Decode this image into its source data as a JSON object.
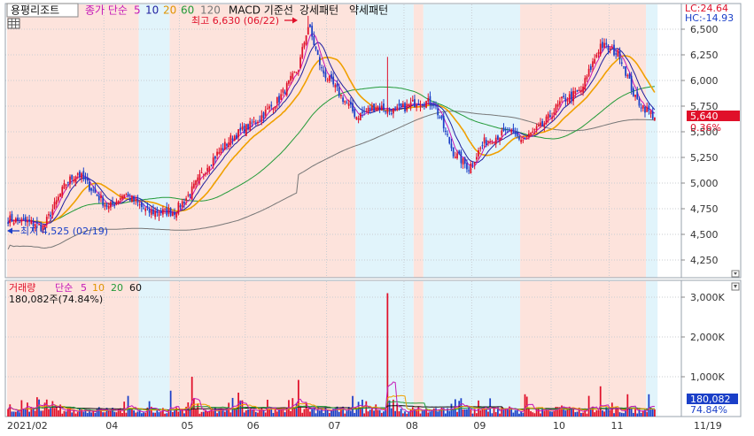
{
  "header": {
    "stock_name": "용평리조트",
    "ma_label_price": "종가 단순",
    "ma_periods": [
      "5",
      "10",
      "20",
      "60",
      "120"
    ],
    "indicators": [
      "MACD 기준선",
      "강세패턴",
      "약세패턴"
    ],
    "lc_label": "LC:24.64",
    "hc_label": "HC:-14.93"
  },
  "volume_header": {
    "label": "거래량",
    "ma_label": "단순",
    "ma_periods": [
      "5",
      "10",
      "20",
      "60"
    ],
    "current": "180,082주(74.84%)"
  },
  "annotations": {
    "high": "최고 6,630 (06/22)",
    "low": "최저 4,525 (02/19)"
  },
  "price_axis": {
    "ticks": [
      "6,500",
      "6,250",
      "6,000",
      "5,750",
      "5,500",
      "5,250",
      "5,000",
      "4,750",
      "4,500",
      "4,250"
    ],
    "current_price": "5,640",
    "current_change": "0.36%"
  },
  "volume_axis": {
    "ticks": [
      "3,000K",
      "2,000K",
      "1,000K"
    ],
    "current_volume": "180,082",
    "current_ratio": "74.84%"
  },
  "x_axis": {
    "ticks": [
      "2021/02",
      "04",
      "05",
      "06",
      "07",
      "08",
      "09",
      "10",
      "11",
      "11/19"
    ]
  },
  "colors": {
    "up": "#e0102a",
    "down": "#1a3fc8",
    "ma5": "#c418b8",
    "ma10": "#1f1fa0",
    "ma20": "#f0a000",
    "ma60": "#229a38",
    "ma120": "#777777",
    "band_bull": "#fde3dc",
    "band_bear": "#e1f4fb"
  },
  "chart_data": {
    "type": "candlestick",
    "price_range": [
      4100,
      6700
    ],
    "volume_range_k": [
      0,
      3300
    ],
    "anchors": [
      {
        "t": 0,
        "price": 4650,
        "label": "2021/02"
      },
      {
        "t": 14,
        "price": 4600
      },
      {
        "t": 18,
        "price": 4560
      },
      {
        "t": 30,
        "price": 5000
      },
      {
        "t": 36,
        "price": 5100
      },
      {
        "t": 46,
        "price": 4880
      },
      {
        "t": 52,
        "price": 4760
      },
      {
        "t": 60,
        "price": 4900
      },
      {
        "t": 72,
        "price": 4720
      },
      {
        "t": 86,
        "price": 4720
      },
      {
        "t": 94,
        "price": 4900
      },
      {
        "t": 104,
        "price": 5200
      },
      {
        "t": 116,
        "price": 5450
      },
      {
        "t": 128,
        "price": 5600
      },
      {
        "t": 140,
        "price": 5820
      },
      {
        "t": 150,
        "price": 6120
      },
      {
        "t": 155,
        "price": 6550
      },
      {
        "t": 162,
        "price": 6100
      },
      {
        "t": 170,
        "price": 5900
      },
      {
        "t": 180,
        "price": 5650
      },
      {
        "t": 190,
        "price": 5750
      },
      {
        "t": 200,
        "price": 5700
      },
      {
        "t": 212,
        "price": 5800
      },
      {
        "t": 220,
        "price": 5780
      },
      {
        "t": 230,
        "price": 5300
      },
      {
        "t": 238,
        "price": 5150
      },
      {
        "t": 246,
        "price": 5400
      },
      {
        "t": 258,
        "price": 5500
      },
      {
        "t": 266,
        "price": 5420
      },
      {
        "t": 276,
        "price": 5560
      },
      {
        "t": 286,
        "price": 5800
      },
      {
        "t": 296,
        "price": 5900
      },
      {
        "t": 306,
        "price": 6350
      },
      {
        "t": 316,
        "price": 6250
      },
      {
        "t": 324,
        "price": 5820
      },
      {
        "t": 334,
        "price": 5640
      }
    ],
    "date_ticks": [
      {
        "t": 0,
        "label": "2021/02"
      },
      {
        "t": 50,
        "label": "04"
      },
      {
        "t": 89,
        "label": "05"
      },
      {
        "t": 123,
        "label": "06"
      },
      {
        "t": 165,
        "label": "07"
      },
      {
        "t": 205,
        "label": "08"
      },
      {
        "t": 240,
        "label": "09"
      },
      {
        "t": 281,
        "label": "10"
      },
      {
        "t": 311,
        "label": "11"
      },
      {
        "t": 349,
        "label": "11/19"
      }
    ],
    "n_days": 335,
    "high": {
      "t": 155,
      "price": 6630,
      "date": "06/22"
    },
    "low": {
      "t": 14,
      "price": 4525,
      "date": "02/19"
    },
    "bands": [
      {
        "t0": 0,
        "t1": 68,
        "type": "bull"
      },
      {
        "t0": 68,
        "t1": 84,
        "type": "bear"
      },
      {
        "t0": 84,
        "t1": 180,
        "type": "bull"
      },
      {
        "t0": 180,
        "t1": 210,
        "type": "bear"
      },
      {
        "t0": 210,
        "t1": 215,
        "type": "bull"
      },
      {
        "t0": 215,
        "t1": 265,
        "type": "bear"
      },
      {
        "t0": 265,
        "t1": 330,
        "type": "bull"
      },
      {
        "t0": 330,
        "t1": 336,
        "type": "bear"
      }
    ],
    "volume_spikes": [
      {
        "t": 196,
        "value_k": 3100
      },
      {
        "t": 95,
        "value_k": 1000
      },
      {
        "t": 150,
        "value_k": 920
      },
      {
        "t": 306,
        "value_k": 760
      },
      {
        "t": 119,
        "value_k": 600
      },
      {
        "t": 84,
        "value_k": 650
      },
      {
        "t": 267,
        "value_k": 560
      },
      {
        "t": 331,
        "value_k": 560
      },
      {
        "t": 300,
        "value_k": 520
      },
      {
        "t": 320,
        "value_k": 560
      }
    ],
    "last_price": 5640,
    "last_volume_k": 180
  }
}
